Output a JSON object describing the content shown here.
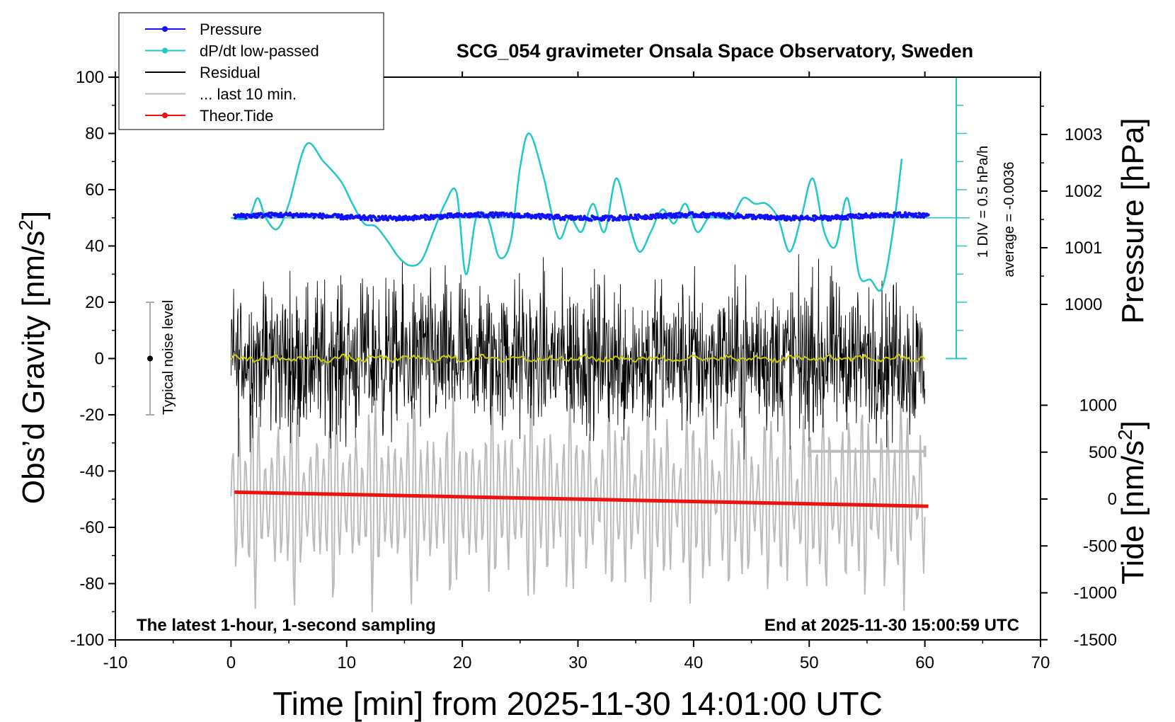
{
  "chart_data": {
    "type": "line",
    "title": "SCG_054 gravimeter Onsala Space Observatory, Sweden",
    "xlabel": "Time [min] from 2025-11-30 14:01:00 UTC",
    "ylabel_left": "Obs’d Gravity [nm/s",
    "ylabel_left_sup": "2",
    "ylabel_left_end": "]",
    "ylabel_right_pressure": "Pressure [hPa]",
    "ylabel_right_tide": "Tide [nm/s",
    "ylabel_right_tide_sup": "2",
    "ylabel_right_tide_end": "]",
    "xlim": [
      -10,
      70
    ],
    "ylim": [
      -100,
      100
    ],
    "pressure_ylim": [
      1000,
      1003
    ],
    "tide_ylim": [
      -1500,
      1000
    ],
    "xticks": [
      "-10",
      "0",
      "10",
      "20",
      "30",
      "40",
      "50",
      "60",
      "70"
    ],
    "yticks": [
      "-100",
      "-80",
      "-60",
      "-40",
      "-20",
      "0",
      "20",
      "40",
      "60",
      "80",
      "100"
    ],
    "pressure_ticks": [
      "1000",
      "1001",
      "1002",
      "1003"
    ],
    "tide_ticks": [
      "-1500",
      "-1000",
      "-500",
      "0",
      "500",
      "1000"
    ],
    "annotations": {
      "bottom_left": "The latest 1-hour, 1-second sampling",
      "bottom_right": "End at 2025-11-30 15:00:59 UTC",
      "div_scale": "1 DIV = 0.5 hPa/h",
      "average": "average = -0.0036",
      "noise_label": "Typical noise level"
    },
    "noise_bar": {
      "x": -7,
      "center": 0,
      "half_range": 20
    },
    "legend": {
      "placement": "top-left",
      "entries": [
        {
          "label": "Pressure",
          "color": "#1010ff",
          "marker": true
        },
        {
          "label": "dP/dt low-passed",
          "color": "#20c8c8",
          "marker": true
        },
        {
          "label": "Residual",
          "color": "#000000",
          "marker": false
        },
        {
          "label": "... last 10 min.",
          "color": "#bbbbbb",
          "marker": false
        },
        {
          "label": "Theor.Tide",
          "color": "#ee1111",
          "marker": true
        }
      ]
    },
    "colors": {
      "pressure": "#1010ff",
      "dpdt": "#20c8c8",
      "residual": "#000000",
      "residual_smooth": "#cccc00",
      "last10": "#bbbbbb",
      "tide": "#ee1111"
    },
    "series": [
      {
        "name": "Pressure",
        "x_range": [
          0.3,
          60.3
        ],
        "level": 1001.55,
        "spread": 0.08
      },
      {
        "name": "dP/dt low-passed",
        "x": [
          0,
          1.5,
          2.3,
          3,
          4,
          5,
          6.5,
          8,
          9.5,
          10.5,
          11.5,
          12.5,
          13.5,
          14.5,
          15.5,
          16.5,
          17.5,
          18.5,
          19.5,
          20.3,
          21.2,
          22.2,
          23.2,
          24.2,
          25,
          25.8,
          27,
          28.3,
          29.3,
          30.3,
          31.3,
          32.3,
          33.3,
          34.3,
          35.3,
          36.3,
          37.3,
          38.3,
          39.3,
          40.3,
          41.3,
          42.3,
          43.3,
          44.3,
          45.3,
          46.3,
          47.3,
          48.3,
          49.3,
          50.3,
          51.3,
          52.3,
          53.3,
          54.3,
          55.3,
          56.3,
          57.3,
          58
        ],
        "y": [
          50,
          50,
          57,
          50,
          46,
          55,
          76,
          70,
          63,
          55,
          48,
          47,
          42,
          36,
          33,
          35,
          45,
          55,
          59,
          30,
          50,
          50,
          36,
          42,
          68,
          80,
          65,
          43,
          50,
          45,
          55,
          45,
          64,
          50,
          38,
          45,
          53,
          48,
          55,
          45,
          50,
          50,
          50,
          57,
          55,
          55,
          50,
          38,
          50,
          64,
          45,
          40,
          57,
          30,
          28,
          25,
          47,
          71
        ]
      },
      {
        "name": "Residual",
        "x_range": [
          0,
          60
        ],
        "center": 0,
        "amplitude": 40
      },
      {
        "name": "... last 10 min.",
        "x_range": [
          0,
          60
        ],
        "center": -50,
        "amplitude": 40
      },
      {
        "name": "Theor.Tide",
        "x": [
          0.3,
          60.3
        ],
        "y": [
          -47.5,
          -52.5
        ]
      }
    ]
  }
}
